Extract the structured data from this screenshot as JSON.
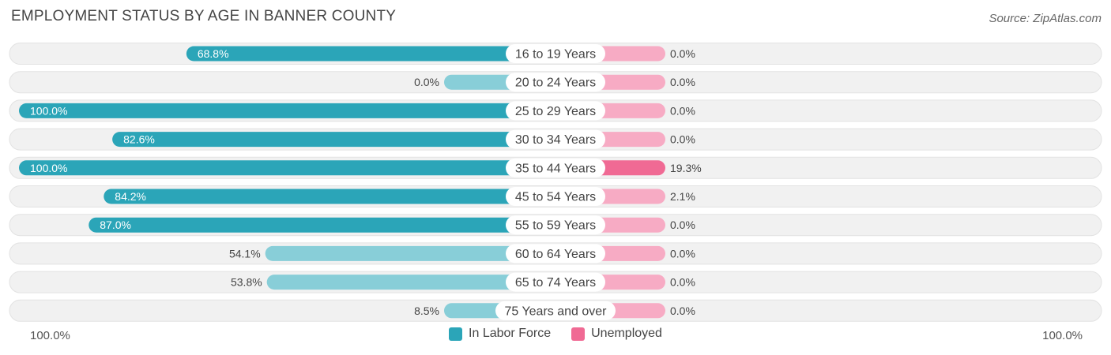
{
  "header": {
    "title": "EMPLOYMENT STATUS BY AGE IN BANNER COUNTY",
    "source": "Source: ZipAtlas.com"
  },
  "colors": {
    "labor_strong": "#2ba5b8",
    "labor_light": "#88ced8",
    "unemp_strong": "#f06a94",
    "unemp_light": "#f7abc4",
    "track": "#f1f1f1"
  },
  "chart_data": {
    "type": "bar",
    "orientation": "horizontal-diverging",
    "title": "EMPLOYMENT STATUS BY AGE IN BANNER COUNTY",
    "categories": [
      "16 to 19 Years",
      "20 to 24 Years",
      "25 to 29 Years",
      "30 to 34 Years",
      "35 to 44 Years",
      "45 to 54 Years",
      "55 to 59 Years",
      "60 to 64 Years",
      "65 to 74 Years",
      "75 Years and over"
    ],
    "series": [
      {
        "name": "In Labor Force",
        "side": "left",
        "values": [
          68.8,
          0.0,
          100.0,
          82.6,
          100.0,
          84.2,
          87.0,
          54.1,
          53.8,
          8.5
        ],
        "labels": [
          "68.8%",
          "0.0%",
          "100.0%",
          "82.6%",
          "100.0%",
          "84.2%",
          "87.0%",
          "54.1%",
          "53.8%",
          "8.5%"
        ]
      },
      {
        "name": "Unemployed",
        "side": "right",
        "values": [
          0.0,
          0.0,
          0.0,
          0.0,
          19.3,
          2.1,
          0.0,
          0.0,
          0.0,
          0.0
        ],
        "labels": [
          "0.0%",
          "0.0%",
          "0.0%",
          "0.0%",
          "19.3%",
          "2.1%",
          "0.0%",
          "0.0%",
          "0.0%",
          "0.0%"
        ]
      }
    ],
    "xlim_left": [
      0,
      100
    ],
    "xlim_right": [
      0,
      100
    ],
    "axis_labels": {
      "left": "100.0%",
      "right": "100.0%"
    },
    "legend": [
      "In Labor Force",
      "Unemployed"
    ]
  }
}
